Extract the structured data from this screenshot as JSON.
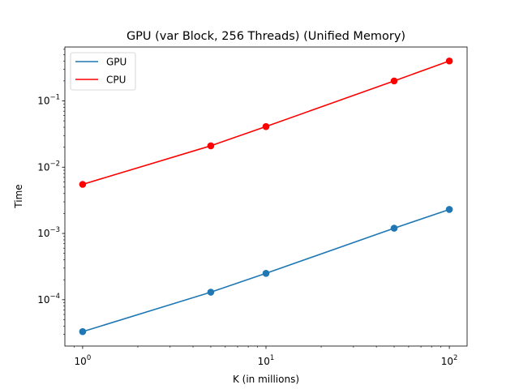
{
  "chart_data": {
    "type": "line",
    "title": "GPU (var Block, 256 Threads) (Unified Memory)",
    "xlabel": "K (in millions)",
    "ylabel": "Time",
    "xscale": "log",
    "yscale": "log",
    "xlim": [
      0.8,
      125
    ],
    "ylim": [
      2e-05,
      0.65
    ],
    "grid": false,
    "legend_position": "top-left",
    "x": [
      1,
      5,
      10,
      50,
      100
    ],
    "series": [
      {
        "name": "GPU",
        "color": "#1f77b4",
        "values": [
          3.3e-05,
          0.00013,
          0.00025,
          0.0012,
          0.0023
        ]
      },
      {
        "name": "CPU",
        "color": "#ff0000",
        "values": [
          0.0055,
          0.021,
          0.041,
          0.2,
          0.4
        ]
      }
    ],
    "x_ticks": [
      {
        "value": 1,
        "base": "10",
        "exp": "0"
      },
      {
        "value": 10,
        "base": "10",
        "exp": "1"
      },
      {
        "value": 100,
        "base": "10",
        "exp": "2"
      }
    ],
    "y_ticks": [
      {
        "value": 0.0001,
        "base": "10",
        "exp": "−4"
      },
      {
        "value": 0.001,
        "base": "10",
        "exp": "−3"
      },
      {
        "value": 0.01,
        "base": "10",
        "exp": "−2"
      },
      {
        "value": 0.1,
        "base": "10",
        "exp": "−1"
      }
    ]
  }
}
